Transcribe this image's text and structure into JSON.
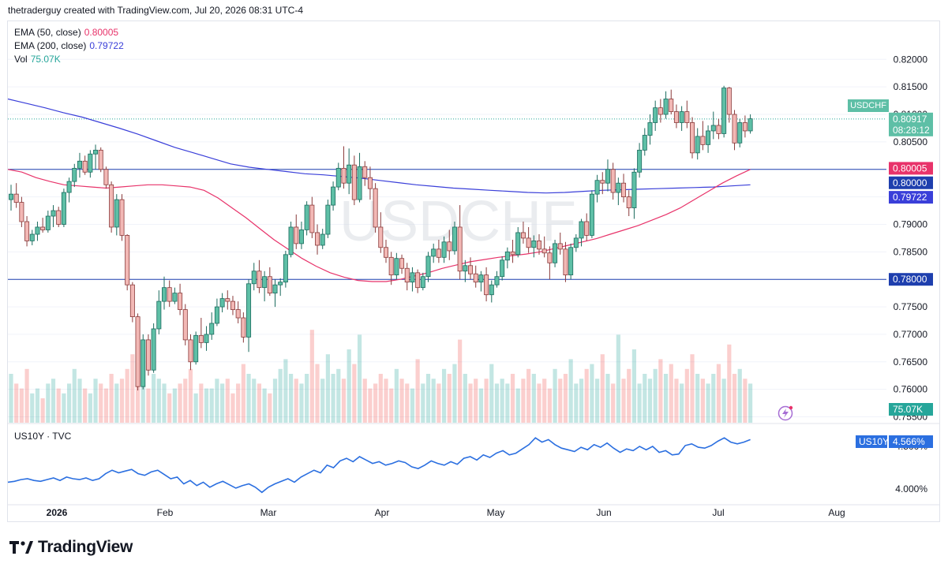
{
  "header": {
    "credit": "thetraderguy created with TradingView.com, Jul 20, 2026 08:31 UTC-4"
  },
  "legend": {
    "ema50_label": "EMA (50, close)",
    "ema50_value": "0.80005",
    "ema200_label": "EMA (200, close)",
    "ema200_value": "0.79722",
    "vol_label": "Vol",
    "vol_value": "75.07K",
    "sub_label": "US10Y · TVC"
  },
  "watermark": "USDCHF",
  "brand": "TradingView",
  "colors": {
    "up": "#26a69a",
    "down": "#ef5350",
    "ema50": "#e8336a",
    "ema200": "#3a3fd9",
    "level": "#1e3fae",
    "us10y": "#2b6fe0",
    "price_tag": "#5ebfa6"
  },
  "icons": [
    "tradingview-logo-icon",
    "lightning-alert-icon"
  ],
  "chart_data": {
    "type": "candlestick",
    "symbol": "USDCHF",
    "price_axis": {
      "ticks": [
        "0.82000",
        "0.81500",
        "0.81000",
        "0.80500",
        "0.80000",
        "0.79500",
        "0.79000",
        "0.78500",
        "0.78000",
        "0.77500",
        "0.77000",
        "0.76500",
        "0.76000",
        "0.75500"
      ],
      "range": [
        0.7545,
        0.8232
      ]
    },
    "time_axis": {
      "labels": [
        "2026",
        "Feb",
        "Mar",
        "Apr",
        "May",
        "Jun",
        "Jul",
        "Aug"
      ]
    },
    "last_price": "0.80917",
    "countdown": "08:28:12",
    "price_labels": [
      {
        "kind": "ema50",
        "value": "0.80005"
      },
      {
        "kind": "level",
        "value": "0.80000"
      },
      {
        "kind": "ema200",
        "value": "0.79722"
      },
      {
        "kind": "level",
        "value": "0.78000"
      },
      {
        "kind": "volume",
        "value": "75.07K"
      }
    ],
    "horizontal_levels": [
      0.8,
      0.78
    ],
    "candles": [
      [
        0.7945,
        0.7972,
        0.7925,
        0.7955
      ],
      [
        0.7955,
        0.7975,
        0.793,
        0.794
      ],
      [
        0.794,
        0.795,
        0.7895,
        0.7905
      ],
      [
        0.7905,
        0.7915,
        0.786,
        0.787
      ],
      [
        0.787,
        0.789,
        0.7862,
        0.7882
      ],
      [
        0.7882,
        0.7905,
        0.787,
        0.7895
      ],
      [
        0.7895,
        0.7912,
        0.7885,
        0.789
      ],
      [
        0.789,
        0.7925,
        0.7885,
        0.7915
      ],
      [
        0.7915,
        0.7935,
        0.7895,
        0.7925
      ],
      [
        0.7925,
        0.7932,
        0.7895,
        0.79
      ],
      [
        0.79,
        0.7965,
        0.7895,
        0.7958
      ],
      [
        0.7958,
        0.7985,
        0.794,
        0.7978
      ],
      [
        0.7978,
        0.801,
        0.7968,
        0.8002
      ],
      [
        0.8002,
        0.803,
        0.7985,
        0.8015
      ],
      [
        0.8015,
        0.8025,
        0.799,
        0.7995
      ],
      [
        0.7995,
        0.8035,
        0.7985,
        0.8028
      ],
      [
        0.8028,
        0.8045,
        0.8,
        0.8035
      ],
      [
        0.8035,
        0.804,
        0.7995,
        0.8
      ],
      [
        0.8,
        0.8005,
        0.7965,
        0.7972
      ],
      [
        0.7972,
        0.7978,
        0.7885,
        0.7895
      ],
      [
        0.7895,
        0.7955,
        0.788,
        0.7945
      ],
      [
        0.7945,
        0.7955,
        0.787,
        0.788
      ],
      [
        0.788,
        0.7882,
        0.778,
        0.779
      ],
      [
        0.779,
        0.7795,
        0.7722,
        0.7732
      ],
      [
        0.7732,
        0.7738,
        0.7598,
        0.7605
      ],
      [
        0.7605,
        0.77,
        0.76,
        0.769
      ],
      [
        0.769,
        0.77,
        0.7625,
        0.7635
      ],
      [
        0.7635,
        0.772,
        0.763,
        0.771
      ],
      [
        0.771,
        0.778,
        0.77,
        0.776
      ],
      [
        0.776,
        0.7805,
        0.7745,
        0.7785
      ],
      [
        0.7785,
        0.7798,
        0.775,
        0.776
      ],
      [
        0.776,
        0.7785,
        0.7755,
        0.7775
      ],
      [
        0.7775,
        0.7792,
        0.7735,
        0.7745
      ],
      [
        0.7745,
        0.7755,
        0.768,
        0.769
      ],
      [
        0.769,
        0.77,
        0.7635,
        0.765
      ],
      [
        0.765,
        0.7705,
        0.7645,
        0.7698
      ],
      [
        0.7698,
        0.773,
        0.7675,
        0.7685
      ],
      [
        0.7685,
        0.7715,
        0.767,
        0.77
      ],
      [
        0.77,
        0.774,
        0.769,
        0.772
      ],
      [
        0.772,
        0.7765,
        0.7715,
        0.775
      ],
      [
        0.775,
        0.7775,
        0.774,
        0.7765
      ],
      [
        0.7765,
        0.778,
        0.7745,
        0.776
      ],
      [
        0.776,
        0.777,
        0.7735,
        0.7745
      ],
      [
        0.7745,
        0.776,
        0.772,
        0.773
      ],
      [
        0.773,
        0.774,
        0.7685,
        0.7695
      ],
      [
        0.7695,
        0.78,
        0.7668,
        0.7792
      ],
      [
        0.7792,
        0.783,
        0.778,
        0.7815
      ],
      [
        0.7815,
        0.7835,
        0.7775,
        0.7785
      ],
      [
        0.7785,
        0.7815,
        0.776,
        0.7805
      ],
      [
        0.7805,
        0.7822,
        0.777,
        0.7775
      ],
      [
        0.7775,
        0.78,
        0.775,
        0.779
      ],
      [
        0.779,
        0.7802,
        0.777,
        0.7795
      ],
      [
        0.7795,
        0.7852,
        0.7785,
        0.7845
      ],
      [
        0.7845,
        0.7905,
        0.784,
        0.7895
      ],
      [
        0.7895,
        0.7918,
        0.7855,
        0.7865
      ],
      [
        0.7865,
        0.7905,
        0.7855,
        0.789
      ],
      [
        0.789,
        0.7942,
        0.788,
        0.7935
      ],
      [
        0.7935,
        0.795,
        0.7875,
        0.7885
      ],
      [
        0.7885,
        0.79,
        0.7845,
        0.7862
      ],
      [
        0.7862,
        0.7892,
        0.7855,
        0.7882
      ],
      [
        0.7882,
        0.7945,
        0.7875,
        0.7935
      ],
      [
        0.7935,
        0.7978,
        0.7925,
        0.7968
      ],
      [
        0.7968,
        0.8012,
        0.7962,
        0.8002
      ],
      [
        0.8002,
        0.8042,
        0.7965,
        0.7975
      ],
      [
        0.7975,
        0.8038,
        0.7955,
        0.8008
      ],
      [
        0.8008,
        0.8025,
        0.7935,
        0.7945
      ],
      [
        0.7945,
        0.803,
        0.794,
        0.8005
      ],
      [
        0.8005,
        0.8015,
        0.797,
        0.7985
      ],
      [
        0.7985,
        0.8005,
        0.7945,
        0.7965
      ],
      [
        0.7965,
        0.7975,
        0.7885,
        0.7895
      ],
      [
        0.7895,
        0.7922,
        0.7848,
        0.7858
      ],
      [
        0.7858,
        0.7872,
        0.783,
        0.784
      ],
      [
        0.784,
        0.785,
        0.779,
        0.7808
      ],
      [
        0.7808,
        0.7848,
        0.78,
        0.7838
      ],
      [
        0.7838,
        0.7845,
        0.781,
        0.782
      ],
      [
        0.782,
        0.783,
        0.778,
        0.7795
      ],
      [
        0.7795,
        0.7822,
        0.7778,
        0.7812
      ],
      [
        0.7812,
        0.7818,
        0.7775,
        0.7785
      ],
      [
        0.7785,
        0.7812,
        0.778,
        0.7805
      ],
      [
        0.7805,
        0.785,
        0.7795,
        0.7842
      ],
      [
        0.7842,
        0.7865,
        0.783,
        0.7855
      ],
      [
        0.7855,
        0.7872,
        0.783,
        0.784
      ],
      [
        0.784,
        0.7878,
        0.783,
        0.7868
      ],
      [
        0.7868,
        0.789,
        0.7835,
        0.7852
      ],
      [
        0.7852,
        0.7905,
        0.7845,
        0.7895
      ],
      [
        0.7895,
        0.7935,
        0.78,
        0.7815
      ],
      [
        0.7815,
        0.7835,
        0.7795,
        0.7825
      ],
      [
        0.7825,
        0.784,
        0.78,
        0.781
      ],
      [
        0.781,
        0.7825,
        0.7785,
        0.7795
      ],
      [
        0.7795,
        0.7815,
        0.7778,
        0.7808
      ],
      [
        0.7808,
        0.7822,
        0.776,
        0.7772
      ],
      [
        0.7772,
        0.7798,
        0.7758,
        0.779
      ],
      [
        0.779,
        0.7815,
        0.7785,
        0.7805
      ],
      [
        0.7805,
        0.7842,
        0.7798,
        0.7835
      ],
      [
        0.7835,
        0.7858,
        0.782,
        0.785
      ],
      [
        0.785,
        0.7872,
        0.783,
        0.7845
      ],
      [
        0.7845,
        0.7895,
        0.784,
        0.7885
      ],
      [
        0.7885,
        0.7905,
        0.7865,
        0.7875
      ],
      [
        0.7875,
        0.7895,
        0.7848,
        0.7858
      ],
      [
        0.7858,
        0.788,
        0.784,
        0.787
      ],
      [
        0.787,
        0.7882,
        0.7845,
        0.7855
      ],
      [
        0.7855,
        0.7878,
        0.784,
        0.7848
      ],
      [
        0.7848,
        0.786,
        0.78,
        0.783
      ],
      [
        0.783,
        0.7872,
        0.7822,
        0.7865
      ],
      [
        0.7865,
        0.7885,
        0.7845,
        0.7855
      ],
      [
        0.7855,
        0.7868,
        0.7795,
        0.7808
      ],
      [
        0.7808,
        0.7865,
        0.78,
        0.7858
      ],
      [
        0.7858,
        0.7882,
        0.785,
        0.7875
      ],
      [
        0.7875,
        0.791,
        0.786,
        0.7905
      ],
      [
        0.7905,
        0.792,
        0.787,
        0.788
      ],
      [
        0.788,
        0.7962,
        0.7875,
        0.7955
      ],
      [
        0.7955,
        0.799,
        0.794,
        0.798
      ],
      [
        0.798,
        0.7995,
        0.7955,
        0.7975
      ],
      [
        0.7975,
        0.8018,
        0.796,
        0.8
      ],
      [
        0.8,
        0.8012,
        0.7945,
        0.7958
      ],
      [
        0.7958,
        0.7985,
        0.7935,
        0.7975
      ],
      [
        0.7975,
        0.7992,
        0.794,
        0.795
      ],
      [
        0.795,
        0.7962,
        0.7915,
        0.793
      ],
      [
        0.793,
        0.8002,
        0.791,
        0.7995
      ],
      [
        0.7995,
        0.8048,
        0.7985,
        0.8035
      ],
      [
        0.8035,
        0.8075,
        0.8025,
        0.8062
      ],
      [
        0.8062,
        0.81,
        0.8045,
        0.8085
      ],
      [
        0.8085,
        0.8125,
        0.807,
        0.8112
      ],
      [
        0.8112,
        0.8128,
        0.8085,
        0.81
      ],
      [
        0.81,
        0.8142,
        0.8092,
        0.8128
      ],
      [
        0.8128,
        0.8145,
        0.81,
        0.8105
      ],
      [
        0.8105,
        0.8118,
        0.8075,
        0.8085
      ],
      [
        0.8085,
        0.8115,
        0.807,
        0.8105
      ],
      [
        0.8105,
        0.8125,
        0.8075,
        0.8085
      ],
      [
        0.8085,
        0.8095,
        0.802,
        0.803
      ],
      [
        0.803,
        0.8075,
        0.8018,
        0.806
      ],
      [
        0.806,
        0.8088,
        0.8035,
        0.8045
      ],
      [
        0.8045,
        0.808,
        0.803,
        0.807
      ],
      [
        0.807,
        0.8105,
        0.8055,
        0.808
      ],
      [
        0.808,
        0.8092,
        0.8055,
        0.8065
      ],
      [
        0.8065,
        0.8152,
        0.8058,
        0.8148
      ],
      [
        0.8148,
        0.815,
        0.8085,
        0.81
      ],
      [
        0.81,
        0.8108,
        0.8035,
        0.8048
      ],
      [
        0.8048,
        0.8092,
        0.804,
        0.8085
      ],
      [
        0.8085,
        0.8098,
        0.8058,
        0.807
      ],
      [
        0.807,
        0.81,
        0.8065,
        0.8092
      ]
    ],
    "ema50": [
      0.8,
      0.7995,
      0.7985,
      0.7978,
      0.7972,
      0.797,
      0.7968,
      0.7966,
      0.7968,
      0.797,
      0.7972,
      0.7972,
      0.797,
      0.7968,
      0.7962,
      0.7948,
      0.793,
      0.7912,
      0.7892,
      0.7872,
      0.7855,
      0.7838,
      0.7824,
      0.7812,
      0.7804,
      0.7798,
      0.7796,
      0.7796,
      0.78,
      0.7806,
      0.7812,
      0.782,
      0.7826,
      0.7832,
      0.7836,
      0.784,
      0.7843,
      0.7846,
      0.785,
      0.7856,
      0.7862,
      0.7868,
      0.7874,
      0.7882,
      0.789,
      0.7898,
      0.7908,
      0.7918,
      0.793,
      0.7945,
      0.796,
      0.7975,
      0.7988,
      0.8
    ],
    "ema200": [
      0.8128,
      0.812,
      0.8112,
      0.8103,
      0.8095,
      0.8085,
      0.8075,
      0.8064,
      0.8052,
      0.804,
      0.803,
      0.802,
      0.801,
      0.8004,
      0.8,
      0.7996,
      0.7992,
      0.799,
      0.7987,
      0.7984,
      0.798,
      0.7976,
      0.7972,
      0.7969,
      0.7966,
      0.7964,
      0.7962,
      0.796,
      0.7958,
      0.7957,
      0.7958,
      0.796,
      0.7962,
      0.7963,
      0.7964,
      0.7965,
      0.7966,
      0.7967,
      0.7968,
      0.797,
      0.7972
    ],
    "volume": [
      10,
      8,
      7,
      11,
      6,
      7,
      5,
      8,
      9,
      7,
      6,
      8,
      11,
      9,
      7,
      6,
      9,
      8,
      7,
      10,
      8,
      9,
      11,
      14,
      9,
      8,
      7,
      10,
      9,
      8,
      6,
      7,
      8,
      9,
      11,
      6,
      8,
      7,
      7,
      9,
      8,
      9,
      6,
      8,
      12,
      10,
      9,
      8,
      7,
      6,
      9,
      11,
      13,
      10,
      9,
      8,
      10,
      19,
      12,
      9,
      14,
      10,
      11,
      9,
      15,
      12,
      18,
      9,
      7,
      8,
      10,
      9,
      7,
      11,
      9,
      8,
      7,
      13,
      8,
      10,
      9,
      8,
      11,
      10,
      12,
      17,
      10,
      8,
      9,
      7,
      9,
      12,
      8,
      9,
      8,
      10,
      7,
      9,
      11,
      10,
      8,
      9,
      7,
      11,
      9,
      10,
      13,
      8,
      9,
      11,
      12,
      9,
      14,
      10,
      8,
      18,
      9,
      11,
      15,
      8,
      10,
      9,
      11,
      13,
      10,
      12,
      9,
      8,
      11,
      14,
      10,
      9,
      8,
      10,
      12,
      9,
      16,
      10,
      11,
      9,
      8,
      7
    ],
    "volume_last": "75.07K",
    "us10y": {
      "label": "US10Y · TVC",
      "last": "4.566%",
      "ticks": [
        "4.500%",
        "4.000%"
      ],
      "values": [
        4.08,
        4.09,
        4.11,
        4.12,
        4.1,
        4.09,
        4.11,
        4.13,
        4.1,
        4.14,
        4.12,
        4.11,
        4.13,
        4.1,
        4.12,
        4.18,
        4.22,
        4.19,
        4.21,
        4.23,
        4.18,
        4.16,
        4.2,
        4.22,
        4.17,
        4.12,
        4.14,
        4.06,
        4.1,
        4.04,
        4.08,
        4.02,
        4.06,
        4.09,
        4.05,
        4.01,
        4.04,
        4.06,
        4.02,
        3.96,
        4.02,
        4.06,
        4.09,
        4.12,
        4.08,
        4.14,
        4.18,
        4.22,
        4.19,
        4.28,
        4.25,
        4.33,
        4.36,
        4.32,
        4.38,
        4.34,
        4.3,
        4.32,
        4.28,
        4.3,
        4.33,
        4.31,
        4.26,
        4.24,
        4.28,
        4.33,
        4.3,
        4.28,
        4.32,
        4.29,
        4.36,
        4.38,
        4.34,
        4.4,
        4.37,
        4.42,
        4.45,
        4.4,
        4.42,
        4.47,
        4.52,
        4.6,
        4.55,
        4.58,
        4.52,
        4.48,
        4.46,
        4.44,
        4.49,
        4.46,
        4.52,
        4.49,
        4.54,
        4.48,
        4.43,
        4.47,
        4.45,
        4.5,
        4.46,
        4.5,
        4.43,
        4.45,
        4.4,
        4.41,
        4.51,
        4.53,
        4.49,
        4.48,
        4.51,
        4.56,
        4.6,
        4.55,
        4.53,
        4.55,
        4.58
      ]
    }
  }
}
